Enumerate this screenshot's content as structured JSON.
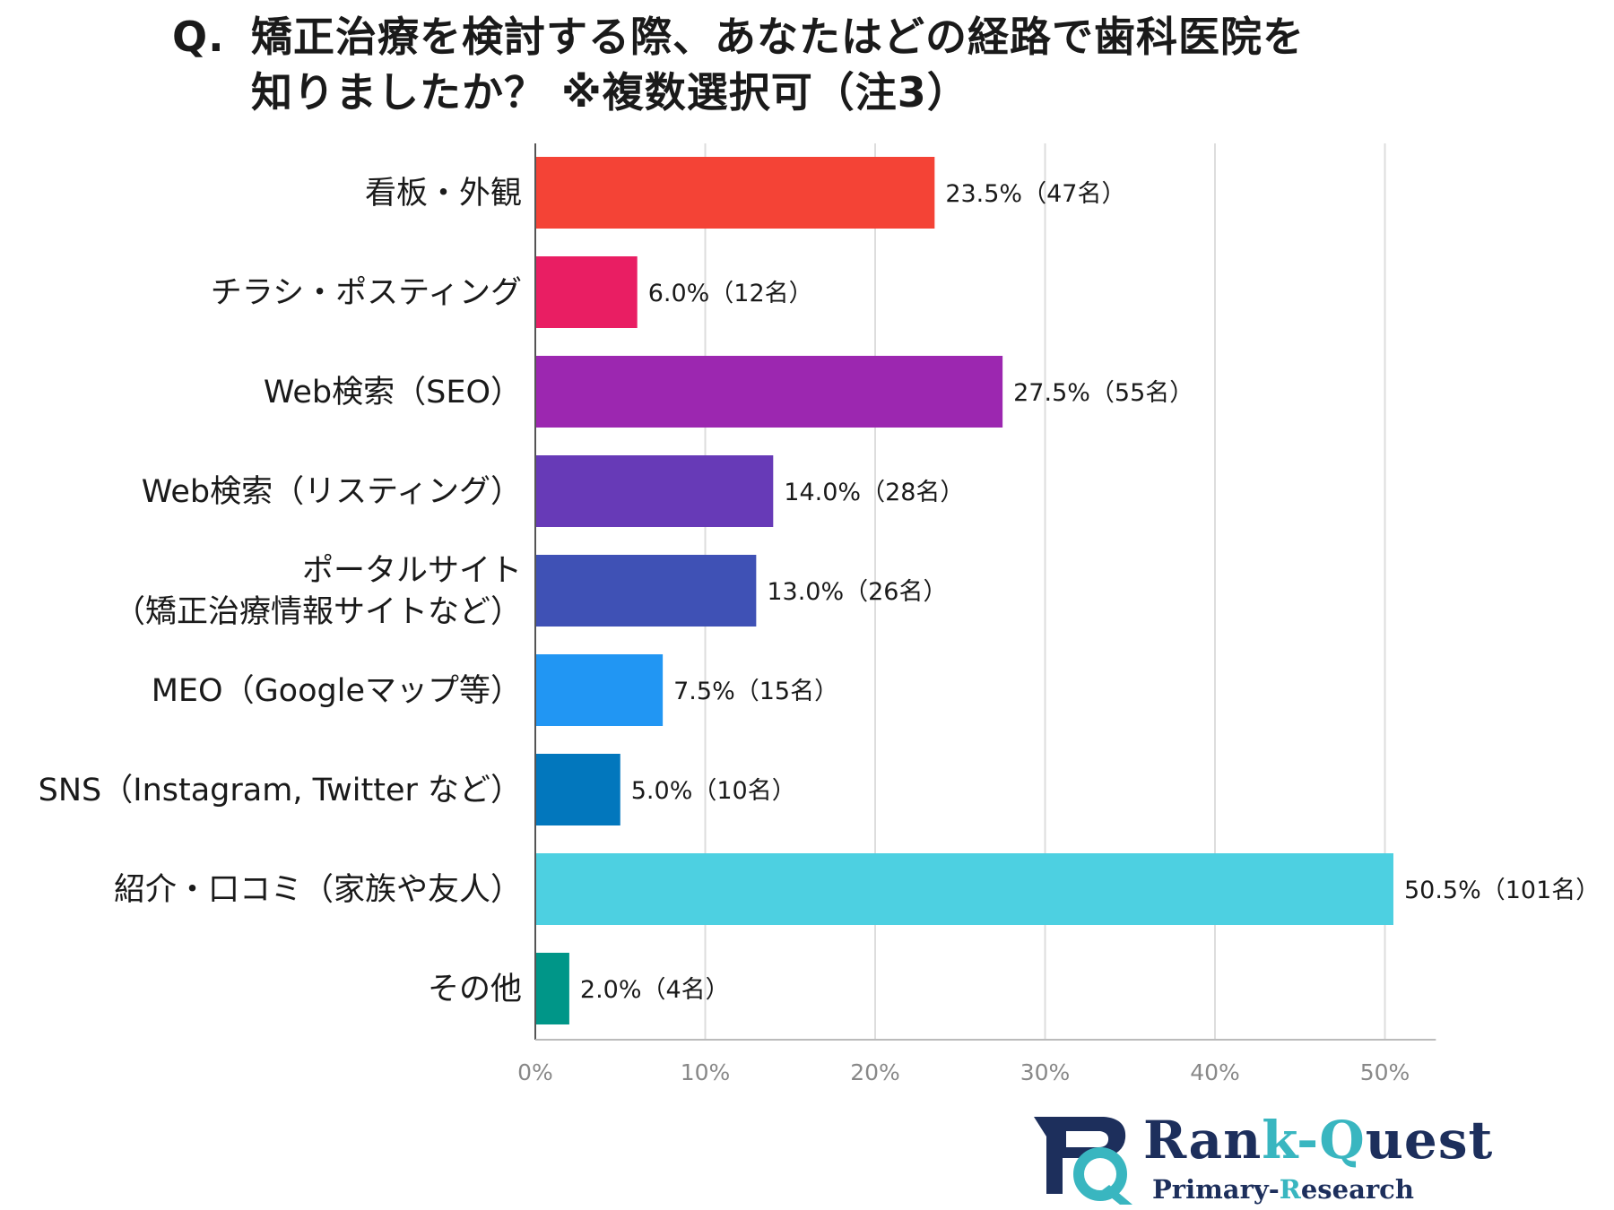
{
  "title": {
    "prefix": "Q.",
    "line1": "矯正治療を検討する際、あなたはどの経路で歯科医院を",
    "line2": "知りましたか？ ※複数選択可（注3）"
  },
  "chart_data": {
    "type": "bar",
    "orientation": "horizontal",
    "xlim": [
      0,
      53
    ],
    "x_ticks": [
      {
        "value": 0,
        "label": "0%"
      },
      {
        "value": 10,
        "label": "10%"
      },
      {
        "value": 20,
        "label": "20%"
      },
      {
        "value": 30,
        "label": "30%"
      },
      {
        "value": 40,
        "label": "40%"
      },
      {
        "value": 50,
        "label": "50%"
      }
    ],
    "grid": true,
    "bars": [
      {
        "label_lines": [
          "看板・外観"
        ],
        "value": 23.5,
        "data_label": "23.5%（47名）",
        "color": "#f44336"
      },
      {
        "label_lines": [
          "チラシ・ポスティング"
        ],
        "value": 6.0,
        "data_label": "6.0%（12名）",
        "color": "#e91e63"
      },
      {
        "label_lines": [
          "Web検索（SEO）"
        ],
        "value": 27.5,
        "data_label": "27.5%（55名）",
        "color": "#9c27b0"
      },
      {
        "label_lines": [
          "Web検索（リスティング）"
        ],
        "value": 14.0,
        "data_label": "14.0%（28名）",
        "color": "#673ab7"
      },
      {
        "label_lines": [
          "ポータルサイト",
          "（矯正治療情報サイトなど）"
        ],
        "value": 13.0,
        "data_label": "13.0%（26名）",
        "color": "#3f51b5"
      },
      {
        "label_lines": [
          "MEO（Googleマップ等）"
        ],
        "value": 7.5,
        "data_label": "7.5%（15名）",
        "color": "#2196f3"
      },
      {
        "label_lines": [
          "SNS（Instagram, Twitter など）"
        ],
        "value": 5.0,
        "data_label": "5.0%（10名）",
        "color": "#0277bd"
      },
      {
        "label_lines": [
          "紹介・口コミ（家族や友人）"
        ],
        "value": 50.5,
        "data_label": "50.5%（101名）",
        "color": "#4dd0e1"
      },
      {
        "label_lines": [
          "その他"
        ],
        "value": 2.0,
        "data_label": "2.0%（4名）",
        "color": "#009688"
      }
    ]
  },
  "logo": {
    "name_part1": "Ran",
    "name_part2": "k-",
    "name_part3": "Q",
    "name_part4": "uest",
    "sub_part1": "Primary-",
    "sub_part2": "R",
    "sub_part3": "esearch",
    "colors": {
      "navy": "#1d2f5c",
      "teal": "#39b6c0"
    }
  }
}
